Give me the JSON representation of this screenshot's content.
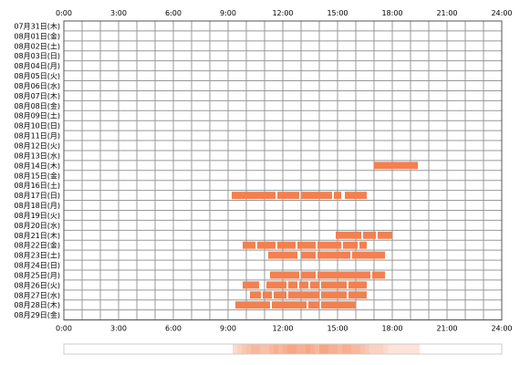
{
  "chart_data": {
    "type": "timeline",
    "title": "",
    "xlabel": "",
    "ylabel": "",
    "x_range_hours": [
      0,
      24
    ],
    "x_ticks": [
      "0:00",
      "3:00",
      "6:00",
      "9:00",
      "12:00",
      "15:00",
      "18:00",
      "21:00",
      "24:00"
    ],
    "grid": true,
    "bar_color": "#f4804f",
    "grid_color": "#999999",
    "border_color": "#555555",
    "days": [
      "07月31日(木)",
      "08月01日(金)",
      "08月02日(土)",
      "08月03日(日)",
      "08月04日(月)",
      "08月05日(火)",
      "08月06日(水)",
      "08月07日(木)",
      "08月08日(金)",
      "08月09日(土)",
      "08月10日(日)",
      "08月11日(月)",
      "08月12日(火)",
      "08月13日(水)",
      "08月14日(木)",
      "08月15日(金)",
      "08月16日(土)",
      "08月17日(日)",
      "08月18日(月)",
      "08月19日(火)",
      "08月20日(水)",
      "08月21日(木)",
      "08月22日(金)",
      "08月23日(土)",
      "08月24日(日)",
      "08月25日(月)",
      "08月26日(火)",
      "08月27日(水)",
      "08月28日(木)",
      "08月29日(金)"
    ],
    "segments": [
      {
        "day": 14,
        "start": 17.0,
        "end": 19.4
      },
      {
        "day": 17,
        "start": 9.2,
        "end": 11.6
      },
      {
        "day": 17,
        "start": 11.7,
        "end": 12.9
      },
      {
        "day": 17,
        "start": 13.0,
        "end": 14.7
      },
      {
        "day": 17,
        "start": 14.8,
        "end": 15.2
      },
      {
        "day": 17,
        "start": 15.4,
        "end": 16.6
      },
      {
        "day": 21,
        "start": 14.9,
        "end": 16.3
      },
      {
        "day": 21,
        "start": 16.4,
        "end": 17.1
      },
      {
        "day": 21,
        "start": 17.2,
        "end": 18.0
      },
      {
        "day": 22,
        "start": 9.8,
        "end": 10.5
      },
      {
        "day": 22,
        "start": 10.6,
        "end": 11.6
      },
      {
        "day": 22,
        "start": 11.7,
        "end": 12.7
      },
      {
        "day": 22,
        "start": 12.8,
        "end": 13.8
      },
      {
        "day": 22,
        "start": 13.9,
        "end": 15.2
      },
      {
        "day": 22,
        "start": 15.3,
        "end": 16.1
      },
      {
        "day": 22,
        "start": 16.2,
        "end": 16.6
      },
      {
        "day": 23,
        "start": 11.2,
        "end": 12.8
      },
      {
        "day": 23,
        "start": 13.0,
        "end": 13.8
      },
      {
        "day": 23,
        "start": 13.9,
        "end": 15.7
      },
      {
        "day": 23,
        "start": 15.8,
        "end": 17.6
      },
      {
        "day": 25,
        "start": 11.3,
        "end": 12.9
      },
      {
        "day": 25,
        "start": 13.0,
        "end": 13.8
      },
      {
        "day": 25,
        "start": 13.9,
        "end": 16.8
      },
      {
        "day": 25,
        "start": 16.9,
        "end": 17.6
      },
      {
        "day": 26,
        "start": 9.8,
        "end": 10.7
      },
      {
        "day": 26,
        "start": 11.1,
        "end": 12.2
      },
      {
        "day": 26,
        "start": 12.3,
        "end": 12.8
      },
      {
        "day": 26,
        "start": 12.9,
        "end": 13.4
      },
      {
        "day": 26,
        "start": 13.5,
        "end": 14.0
      },
      {
        "day": 26,
        "start": 14.1,
        "end": 15.5
      },
      {
        "day": 26,
        "start": 15.6,
        "end": 16.6
      },
      {
        "day": 27,
        "start": 10.2,
        "end": 10.8
      },
      {
        "day": 27,
        "start": 10.9,
        "end": 11.4
      },
      {
        "day": 27,
        "start": 11.5,
        "end": 12.2
      },
      {
        "day": 27,
        "start": 12.3,
        "end": 14.0
      },
      {
        "day": 27,
        "start": 14.1,
        "end": 15.5
      },
      {
        "day": 27,
        "start": 15.6,
        "end": 16.6
      },
      {
        "day": 28,
        "start": 9.4,
        "end": 11.3
      },
      {
        "day": 28,
        "start": 11.4,
        "end": 13.3
      },
      {
        "day": 28,
        "start": 13.4,
        "end": 14.0
      },
      {
        "day": 28,
        "start": 14.1,
        "end": 16.0
      }
    ],
    "summary_bar": {
      "color": "#f4804f",
      "density": [
        {
          "hour": 9.25,
          "count": 2
        },
        {
          "hour": 9.5,
          "count": 3
        },
        {
          "hour": 9.75,
          "count": 4
        },
        {
          "hour": 10.0,
          "count": 5
        },
        {
          "hour": 10.25,
          "count": 6
        },
        {
          "hour": 10.5,
          "count": 6
        },
        {
          "hour": 10.75,
          "count": 5
        },
        {
          "hour": 11.0,
          "count": 5
        },
        {
          "hour": 11.25,
          "count": 6
        },
        {
          "hour": 11.5,
          "count": 7
        },
        {
          "hour": 11.75,
          "count": 6
        },
        {
          "hour": 12.0,
          "count": 7
        },
        {
          "hour": 12.25,
          "count": 8
        },
        {
          "hour": 12.5,
          "count": 8
        },
        {
          "hour": 12.75,
          "count": 7
        },
        {
          "hour": 13.0,
          "count": 7
        },
        {
          "hour": 13.25,
          "count": 8
        },
        {
          "hour": 13.5,
          "count": 7
        },
        {
          "hour": 13.75,
          "count": 6
        },
        {
          "hour": 14.0,
          "count": 8
        },
        {
          "hour": 14.25,
          "count": 8
        },
        {
          "hour": 14.5,
          "count": 7
        },
        {
          "hour": 14.75,
          "count": 7
        },
        {
          "hour": 15.0,
          "count": 6
        },
        {
          "hour": 15.25,
          "count": 7
        },
        {
          "hour": 15.5,
          "count": 7
        },
        {
          "hour": 15.75,
          "count": 6
        },
        {
          "hour": 16.0,
          "count": 6
        },
        {
          "hour": 16.25,
          "count": 5
        },
        {
          "hour": 16.5,
          "count": 4
        },
        {
          "hour": 16.75,
          "count": 3
        },
        {
          "hour": 17.0,
          "count": 3
        },
        {
          "hour": 17.25,
          "count": 3
        },
        {
          "hour": 17.5,
          "count": 2
        },
        {
          "hour": 17.75,
          "count": 1
        },
        {
          "hour": 18.0,
          "count": 1
        },
        {
          "hour": 18.25,
          "count": 1
        },
        {
          "hour": 18.5,
          "count": 1
        },
        {
          "hour": 18.75,
          "count": 1
        },
        {
          "hour": 19.0,
          "count": 1
        },
        {
          "hour": 19.25,
          "count": 1
        }
      ]
    }
  }
}
